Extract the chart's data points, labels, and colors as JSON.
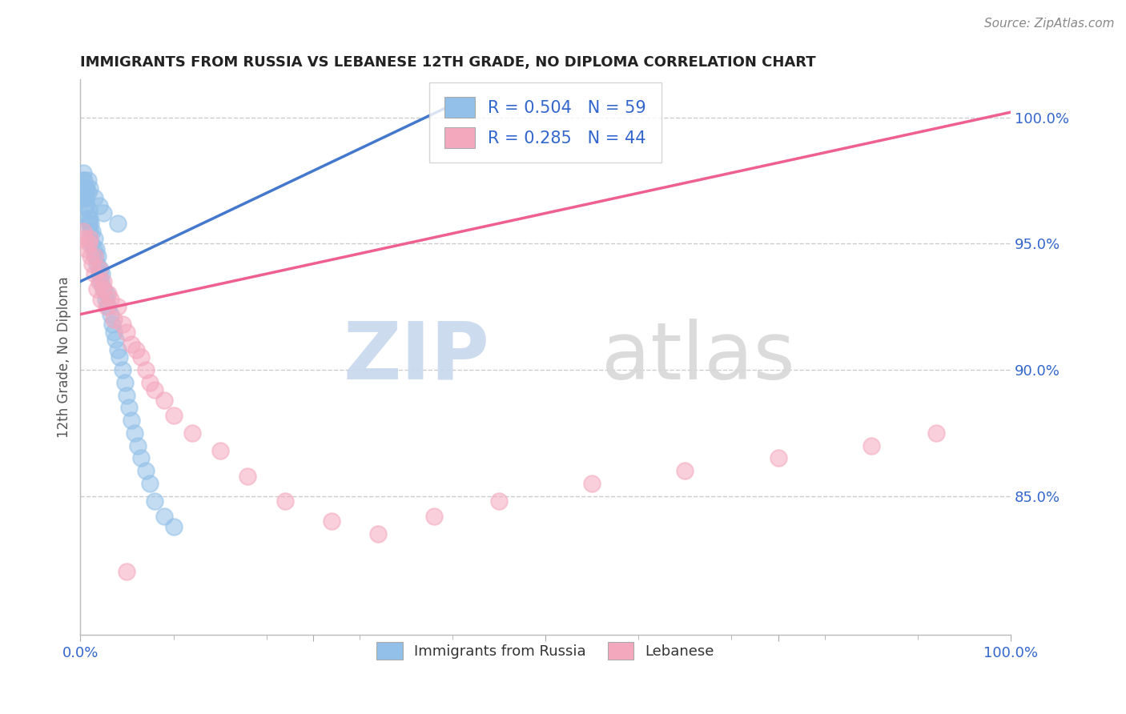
{
  "title": "IMMIGRANTS FROM RUSSIA VS LEBANESE 12TH GRADE, NO DIPLOMA CORRELATION CHART",
  "source": "Source: ZipAtlas.com",
  "ylabel": "12th Grade, No Diploma",
  "legend_label1": "Immigrants from Russia",
  "legend_label2": "Lebanese",
  "R1": 0.504,
  "N1": 59,
  "R2": 0.285,
  "N2": 44,
  "color_blue": "#92C0E8",
  "color_pink": "#F4A8BE",
  "color_blue_line": "#4478CC",
  "color_pink_line": "#EE6090",
  "color_blue_text": "#3366CC",
  "watermark_zip": "ZIP",
  "watermark_atlas": "atlas",
  "xlim": [
    0.0,
    1.0
  ],
  "ylim": [
    0.795,
    1.015
  ],
  "ytick_vals": [
    0.85,
    0.9,
    0.95,
    1.0
  ],
  "ytick_labels": [
    "85.0%",
    "90.0%",
    "95.0%",
    "100.0%"
  ],
  "russia_x": [
    0.002,
    0.003,
    0.004,
    0.005,
    0.005,
    0.006,
    0.007,
    0.007,
    0.008,
    0.008,
    0.009,
    0.009,
    0.01,
    0.01,
    0.011,
    0.012,
    0.013,
    0.014,
    0.015,
    0.016,
    0.017,
    0.018,
    0.019,
    0.02,
    0.021,
    0.022,
    0.023,
    0.025,
    0.027,
    0.028,
    0.03,
    0.032,
    0.034,
    0.036,
    0.038,
    0.04,
    0.042,
    0.045,
    0.048,
    0.05,
    0.052,
    0.055,
    0.058,
    0.062,
    0.065,
    0.07,
    0.075,
    0.08,
    0.09,
    0.1,
    0.003,
    0.004,
    0.006,
    0.008,
    0.01,
    0.015,
    0.02,
    0.025,
    0.04
  ],
  "russia_y": [
    0.975,
    0.972,
    0.968,
    0.97,
    0.965,
    0.968,
    0.972,
    0.965,
    0.97,
    0.96,
    0.963,
    0.958,
    0.96,
    0.955,
    0.958,
    0.95,
    0.955,
    0.948,
    0.952,
    0.945,
    0.948,
    0.942,
    0.945,
    0.938,
    0.94,
    0.935,
    0.938,
    0.932,
    0.928,
    0.93,
    0.925,
    0.922,
    0.918,
    0.915,
    0.912,
    0.908,
    0.905,
    0.9,
    0.895,
    0.89,
    0.885,
    0.88,
    0.875,
    0.87,
    0.865,
    0.86,
    0.855,
    0.848,
    0.842,
    0.838,
    0.978,
    0.975,
    0.972,
    0.975,
    0.972,
    0.968,
    0.965,
    0.962,
    0.958
  ],
  "lebanese_x": [
    0.003,
    0.005,
    0.007,
    0.009,
    0.011,
    0.013,
    0.015,
    0.018,
    0.02,
    0.022,
    0.025,
    0.028,
    0.032,
    0.036,
    0.04,
    0.045,
    0.05,
    0.055,
    0.06,
    0.065,
    0.07,
    0.075,
    0.08,
    0.09,
    0.1,
    0.12,
    0.15,
    0.18,
    0.22,
    0.27,
    0.32,
    0.38,
    0.45,
    0.55,
    0.65,
    0.75,
    0.85,
    0.92,
    0.01,
    0.015,
    0.02,
    0.025,
    0.03,
    0.05
  ],
  "lebanese_y": [
    0.955,
    0.952,
    0.948,
    0.95,
    0.945,
    0.942,
    0.938,
    0.932,
    0.935,
    0.928,
    0.932,
    0.925,
    0.928,
    0.92,
    0.925,
    0.918,
    0.915,
    0.91,
    0.908,
    0.905,
    0.9,
    0.895,
    0.892,
    0.888,
    0.882,
    0.875,
    0.868,
    0.858,
    0.848,
    0.84,
    0.835,
    0.842,
    0.848,
    0.855,
    0.86,
    0.865,
    0.87,
    0.875,
    0.952,
    0.945,
    0.94,
    0.935,
    0.93,
    0.82
  ],
  "blue_line_x": [
    0.0,
    0.4
  ],
  "blue_line_y": [
    0.935,
    1.005
  ],
  "pink_line_x": [
    0.0,
    1.0
  ],
  "pink_line_y": [
    0.922,
    1.002
  ]
}
